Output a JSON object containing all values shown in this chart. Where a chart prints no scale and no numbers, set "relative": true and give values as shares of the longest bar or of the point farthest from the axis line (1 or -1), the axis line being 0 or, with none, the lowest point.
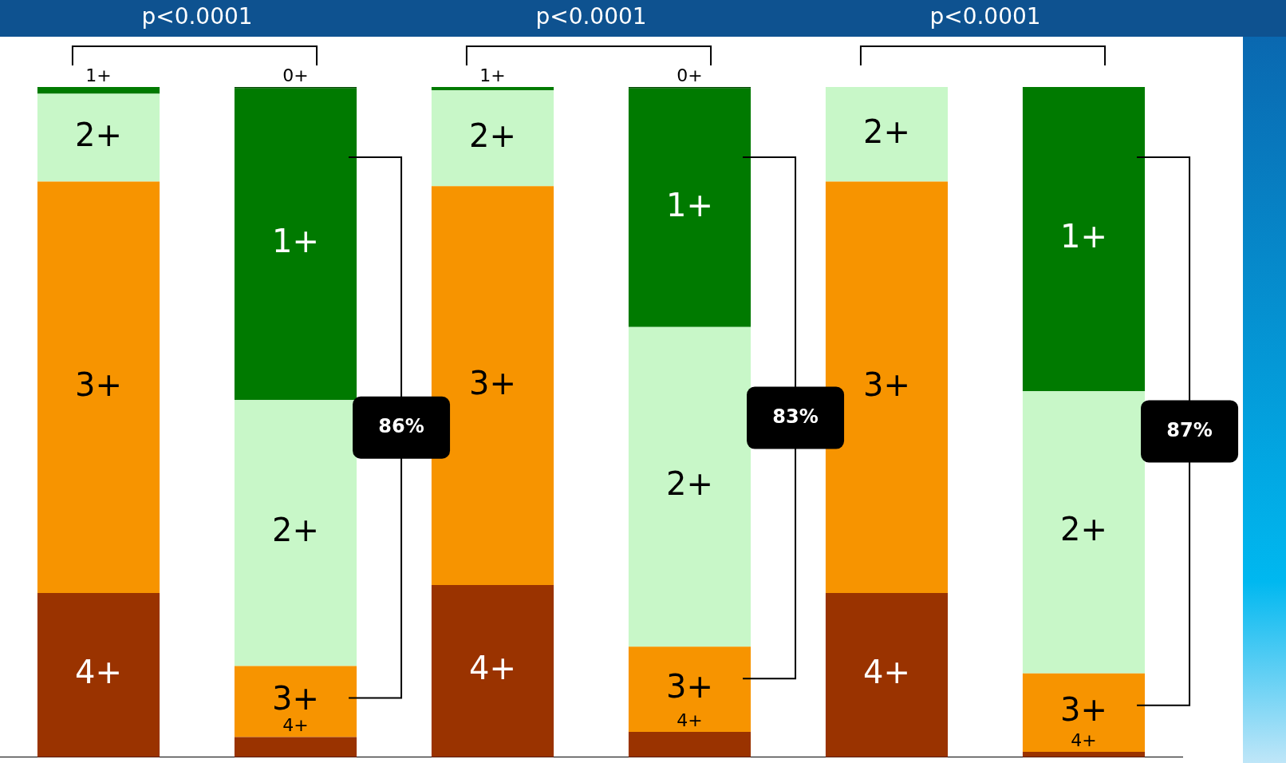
{
  "chart_data": {
    "type": "bar",
    "stacked": true,
    "relative": true,
    "categories": [
      null,
      null,
      null,
      null,
      null,
      null
    ],
    "series": [
      {
        "name": "4+",
        "color": "#9a3300",
        "values": [
          0.245,
          0.03,
          0.257,
          0.038,
          0.245,
          0.008
        ]
      },
      {
        "name": "3+",
        "color": "#f79400",
        "values": [
          0.614,
          0.106,
          0.595,
          0.127,
          0.614,
          0.117
        ]
      },
      {
        "name": "2+",
        "color": "#c8f7c8",
        "values": [
          0.131,
          0.397,
          0.143,
          0.477,
          0.141,
          0.421
        ]
      },
      {
        "name": "1+",
        "color": "#007a00",
        "values": [
          0.01,
          0.465,
          0.005,
          0.356,
          null,
          0.454
        ]
      },
      {
        "name": "0+",
        "color": "#004d00",
        "values": [
          null,
          0.002,
          null,
          0.002,
          null,
          null
        ]
      }
    ],
    "annotations": [
      "p<0.0001",
      "p<0.0001",
      "p<0.0001",
      "86%",
      "83%",
      "87%"
    ]
  }
}
